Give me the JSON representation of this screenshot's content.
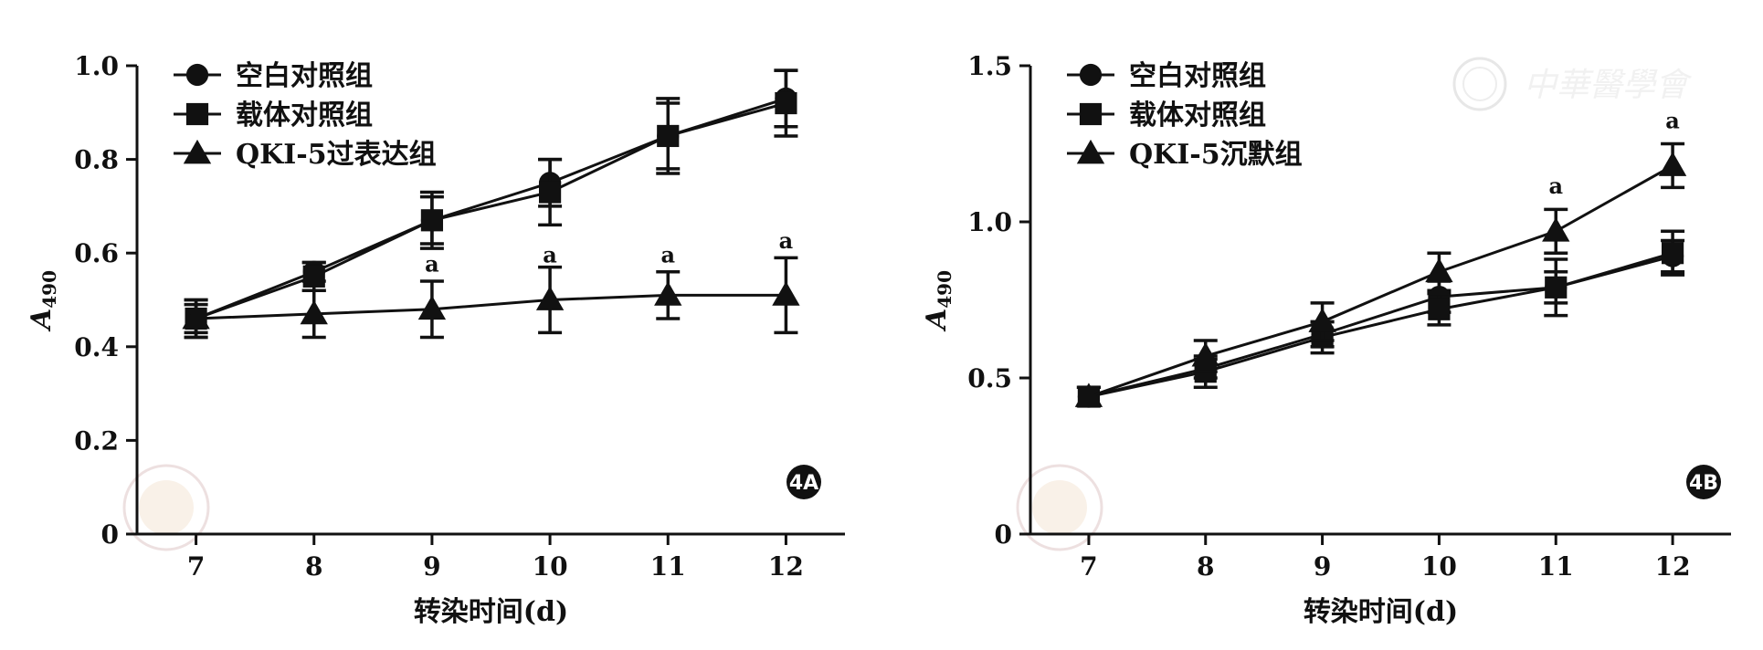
{
  "watermark_text": "中華醫學會",
  "chart_data": [
    {
      "type": "line",
      "panel_label": "4A",
      "xlabel": "转染时间(d)",
      "ylabel_main": "A",
      "ylabel_sub": "490",
      "x": [
        7,
        8,
        9,
        10,
        11,
        12
      ],
      "xlim": [
        6.5,
        12.5
      ],
      "ylim": [
        0,
        1.0
      ],
      "yticks": [
        0,
        0.2,
        0.4,
        0.6,
        0.8,
        1.0
      ],
      "ytick_labels": [
        "0",
        "0.2",
        "0.4",
        "0.6",
        "0.8",
        "1.0"
      ],
      "legend_position": "top-left",
      "series": [
        {
          "name": "空白对照组",
          "marker": "circle",
          "values": [
            0.46,
            0.56,
            0.67,
            0.75,
            0.85,
            0.93
          ],
          "errors": [
            0.03,
            0.02,
            0.05,
            0.05,
            0.07,
            0.06
          ]
        },
        {
          "name": "载体对照组",
          "marker": "square",
          "values": [
            0.46,
            0.55,
            0.67,
            0.73,
            0.85,
            0.92
          ],
          "errors": [
            0.04,
            0.03,
            0.06,
            0.07,
            0.08,
            0.07
          ]
        },
        {
          "name": "QKI-5过表达组",
          "marker": "triangle",
          "values": [
            0.46,
            0.47,
            0.48,
            0.5,
            0.51,
            0.51
          ],
          "errors": [
            0.04,
            0.05,
            0.06,
            0.07,
            0.05,
            0.08
          ]
        }
      ],
      "annotations": [
        {
          "x": 9,
          "text": "a",
          "y": 0.56
        },
        {
          "x": 10,
          "text": "a",
          "y": 0.58
        },
        {
          "x": 11,
          "text": "a",
          "y": 0.58
        },
        {
          "x": 12,
          "text": "a",
          "y": 0.61
        }
      ]
    },
    {
      "type": "line",
      "panel_label": "4B",
      "xlabel": "转染时间(d)",
      "ylabel_main": "A",
      "ylabel_sub": "490",
      "x": [
        7,
        8,
        9,
        10,
        11,
        12
      ],
      "xlim": [
        6.5,
        12.5
      ],
      "ylim": [
        0,
        1.5
      ],
      "yticks": [
        0,
        0.5,
        1.0,
        1.5
      ],
      "ytick_labels": [
        "0",
        "0.5",
        "1.0",
        "1.5"
      ],
      "legend_position": "top-left",
      "series": [
        {
          "name": "空白对照组",
          "marker": "circle",
          "values": [
            0.44,
            0.53,
            0.64,
            0.76,
            0.79,
            0.89
          ],
          "errors": [
            0.03,
            0.03,
            0.04,
            0.05,
            0.05,
            0.05
          ]
        },
        {
          "name": "载体对照组",
          "marker": "square",
          "values": [
            0.44,
            0.52,
            0.63,
            0.72,
            0.79,
            0.9
          ],
          "errors": [
            0.03,
            0.05,
            0.05,
            0.05,
            0.09,
            0.07
          ]
        },
        {
          "name": "QKI-5沉默组",
          "marker": "triangle",
          "values": [
            0.44,
            0.57,
            0.68,
            0.84,
            0.97,
            1.18
          ],
          "errors": [
            0.03,
            0.05,
            0.06,
            0.06,
            0.07,
            0.07
          ]
        }
      ],
      "annotations": [
        {
          "x": 11,
          "text": "a",
          "y": 1.09
        },
        {
          "x": 12,
          "text": "a",
          "y": 1.3
        }
      ]
    }
  ]
}
